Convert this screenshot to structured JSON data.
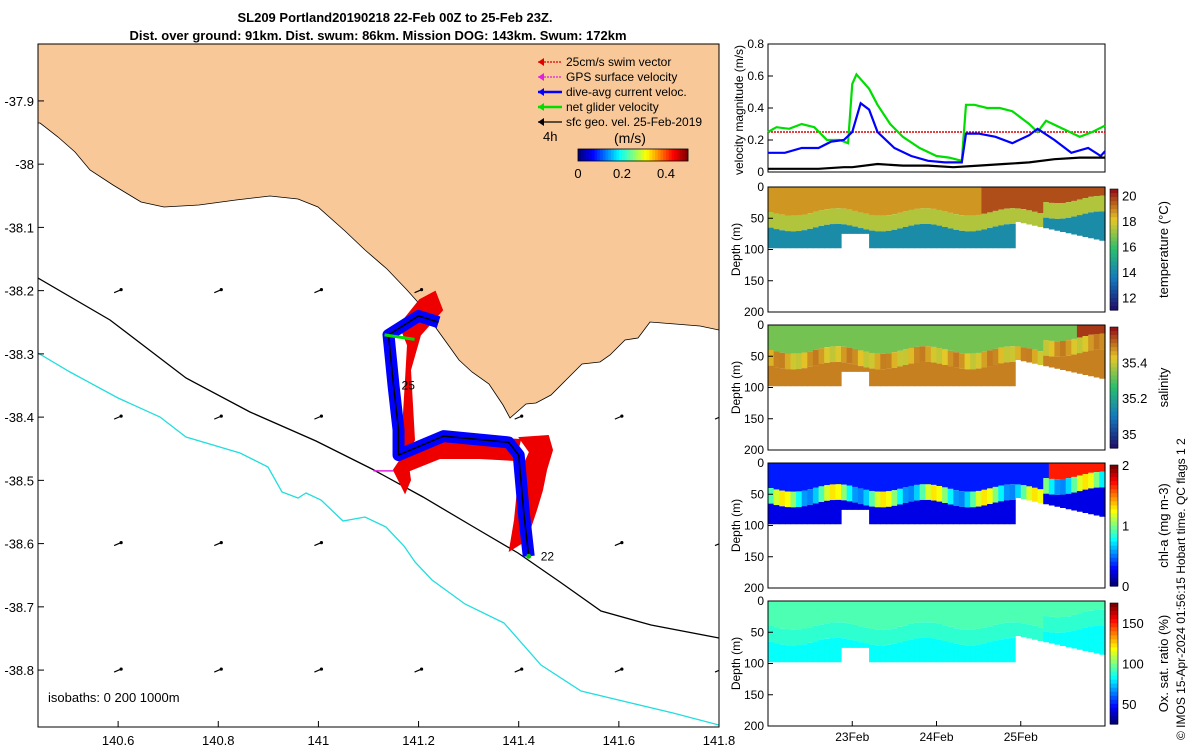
{
  "header": {
    "title_line1": "SL209 Portland20190218 22-Feb 00Z to 25-Feb 23Z.",
    "title_line2": "Dist. over ground: 91km. Dist. swum: 86km. Mission DOG: 143km. Swum: 172km"
  },
  "map": {
    "x_ticks": [
      "140.6",
      "140.8",
      "141",
      "141.2",
      "141.4",
      "141.6",
      "141.8"
    ],
    "y_ticks": [
      "-37.9",
      "-38",
      "-38.1",
      "-38.2",
      "-38.3",
      "-38.4",
      "-38.5",
      "-38.6",
      "-38.7",
      "-38.8"
    ],
    "xlim": [
      140.44,
      141.8
    ],
    "ylim": [
      -38.89,
      -37.81
    ],
    "legend": [
      {
        "label": "25cm/s swim vector",
        "color": "#e00000"
      },
      {
        "label": "GPS surface velocity",
        "color": "#e020e0"
      },
      {
        "label": "dive-avg current veloc.",
        "color": "#0000ff"
      },
      {
        "label": "net glider velocity",
        "color": "#00dd00"
      },
      {
        "label": "sfc geo. vel. 25-Feb-2019",
        "color": "#000000"
      }
    ],
    "colorbar": {
      "label": "(m/s)",
      "ticks": [
        "0",
        "0.2",
        "0.4"
      ],
      "range": [
        0,
        0.5
      ]
    },
    "label_4h": "4h",
    "isobaths_label": "isobaths: 0   200  1000m",
    "track_labels": [
      "25",
      "22"
    ],
    "land_color": "#f9c898",
    "isobath_200_color": "#000000",
    "isobath_1000_color": "#22dddd"
  },
  "velocity_panel": {
    "ylabel": "velocity magnitude (m/s)",
    "y_ticks": [
      "0",
      "0.2",
      "0.4",
      "0.6",
      "0.8"
    ],
    "ylim": [
      0,
      0.8
    ],
    "xlim": [
      22,
      26
    ]
  },
  "sections": [
    {
      "cbar_label": "temperature (°C)",
      "cbar_ticks": [
        "12",
        "14",
        "16",
        "18",
        "20"
      ],
      "cbar_range": [
        11,
        20.5
      ],
      "ylabel": "Depth (m)",
      "y_ticks": [
        "0",
        "50",
        "100",
        "150",
        "200"
      ]
    },
    {
      "cbar_label": "salinity",
      "cbar_ticks": [
        "35",
        "35.2",
        "35.4"
      ],
      "cbar_range": [
        34.92,
        35.6
      ],
      "ylabel": "Depth (m)",
      "y_ticks": [
        "0",
        "50",
        "100",
        "150",
        "200"
      ]
    },
    {
      "cbar_label": "chl-a (mg m-3)",
      "cbar_ticks": [
        "0",
        "1",
        "2"
      ],
      "cbar_range": [
        0,
        2
      ],
      "ylabel": "Depth (m)",
      "y_ticks": [
        "0",
        "50",
        "100",
        "150",
        "200"
      ]
    },
    {
      "cbar_label": "Ox. sat. ratio (%)",
      "cbar_ticks": [
        "50",
        "100",
        "150"
      ],
      "cbar_range": [
        25,
        175
      ],
      "ylabel": "Depth (m)",
      "y_ticks": [
        "0",
        "50",
        "100",
        "150",
        "200"
      ]
    }
  ],
  "time_axis": {
    "ticks": [
      "23Feb",
      "24Feb",
      "25Feb"
    ]
  },
  "credit": "© IMOS 15-Apr-2024 01:56:15 Hobart time. QC flags 1  2",
  "chart_data": [
    {
      "type": "line",
      "title": "",
      "xlabel": "",
      "ylabel": "velocity magnitude (m/s)",
      "ylim": [
        0,
        0.8
      ],
      "x_unit": "day of Feb 2019",
      "series": [
        {
          "color": "#e00000",
          "x": [
            22.0,
            26.0
          ],
          "values": [
            0.25,
            0.25
          ]
        },
        {
          "color": "#00dd00",
          "x": [
            22.0,
            22.1,
            22.25,
            22.4,
            22.55,
            22.7,
            22.85,
            22.95,
            23.0,
            23.05,
            23.1,
            23.2,
            23.3,
            23.45,
            23.6,
            23.8,
            24.0,
            24.15,
            24.3,
            24.35,
            24.45,
            24.6,
            24.75,
            24.9,
            25.0,
            25.1,
            25.2,
            25.3,
            25.5,
            25.7,
            25.85,
            26.0
          ],
          "values": [
            0.25,
            0.28,
            0.27,
            0.3,
            0.28,
            0.2,
            0.2,
            0.18,
            0.55,
            0.61,
            0.58,
            0.52,
            0.42,
            0.3,
            0.22,
            0.15,
            0.1,
            0.09,
            0.07,
            0.42,
            0.42,
            0.4,
            0.4,
            0.38,
            0.34,
            0.3,
            0.25,
            0.32,
            0.27,
            0.22,
            0.25,
            0.29
          ]
        },
        {
          "color": "#0000ff",
          "x": [
            22.0,
            22.2,
            22.4,
            22.6,
            22.75,
            22.9,
            23.0,
            23.1,
            23.2,
            23.3,
            23.5,
            23.7,
            23.9,
            24.1,
            24.3,
            24.35,
            24.5,
            24.7,
            24.9,
            25.1,
            25.2,
            25.4,
            25.6,
            25.8,
            25.95,
            26.0
          ],
          "values": [
            0.12,
            0.12,
            0.15,
            0.15,
            0.19,
            0.2,
            0.25,
            0.43,
            0.39,
            0.25,
            0.15,
            0.1,
            0.07,
            0.06,
            0.06,
            0.24,
            0.24,
            0.22,
            0.18,
            0.23,
            0.27,
            0.2,
            0.12,
            0.15,
            0.1,
            0.13
          ]
        },
        {
          "color": "#000000",
          "x": [
            22.0,
            22.3,
            22.6,
            22.9,
            23.0,
            23.3,
            23.6,
            23.9,
            24.2,
            24.5,
            24.8,
            25.1,
            25.4,
            25.7,
            26.0
          ],
          "values": [
            0.02,
            0.02,
            0.02,
            0.03,
            0.03,
            0.05,
            0.04,
            0.04,
            0.03,
            0.04,
            0.05,
            0.06,
            0.08,
            0.09,
            0.09
          ]
        }
      ]
    },
    {
      "type": "scatter",
      "title": "",
      "xlabel": "",
      "ylabel": "",
      "xlim": [
        140.44,
        141.8
      ],
      "ylim": [
        -38.89,
        -37.81
      ],
      "series": [
        {
          "color": "#0000ff",
          "x": [
            141.42,
            141.41,
            141.4,
            141.38,
            141.25,
            141.16,
            141.16,
            141.15,
            141.14,
            141.2,
            141.24
          ],
          "values": [
            -38.62,
            -38.55,
            -38.46,
            -38.44,
            -38.43,
            -38.46,
            -38.42,
            -38.35,
            -38.27,
            -38.24,
            -38.25
          ]
        },
        {
          "color": "#000000",
          "x": [
            141.42,
            141.41,
            141.4,
            141.38,
            141.25,
            141.16,
            141.16,
            141.15,
            141.14,
            141.2,
            141.24
          ],
          "values": [
            -38.62,
            -38.55,
            -38.46,
            -38.44,
            -38.43,
            -38.46,
            -38.42,
            -38.35,
            -38.27,
            -38.24,
            -38.25
          ]
        }
      ]
    }
  ]
}
